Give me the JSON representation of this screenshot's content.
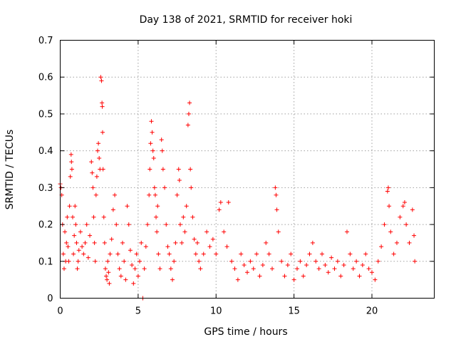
{
  "chart_data": {
    "type": "scatter",
    "title": "Day 138 of 2021, SRMTID for receiver hoki",
    "xlabel": "GPS time / hours",
    "ylabel": "SRMTID / TECUs",
    "xlim": [
      0,
      24
    ],
    "ylim": [
      0,
      0.7
    ],
    "x_ticks": [
      0,
      5,
      10,
      15,
      20
    ],
    "x_tick_labels": [
      "0",
      "5",
      "10",
      "15",
      "20"
    ],
    "y_ticks": [
      0,
      0.1,
      0.2,
      0.3,
      0.4,
      0.5,
      0.6,
      0.7
    ],
    "y_tick_labels": [
      "0",
      "0.1",
      "0.2",
      "0.3",
      "0.4",
      "0.5",
      "0.6",
      "0.7"
    ],
    "grid": true,
    "marker": "plus",
    "color": "#ff0000",
    "series": [
      {
        "name": "SRMTID",
        "points": [
          [
            0.0,
            0.31
          ],
          [
            0.05,
            0.3
          ],
          [
            0.1,
            0.28
          ],
          [
            0.15,
            0.2
          ],
          [
            0.2,
            0.12
          ],
          [
            0.25,
            0.08
          ],
          [
            0.3,
            0.18
          ],
          [
            0.35,
            0.1
          ],
          [
            0.4,
            0.15
          ],
          [
            0.45,
            0.22
          ],
          [
            0.5,
            0.14
          ],
          [
            0.55,
            0.1
          ],
          [
            0.6,
            0.25
          ],
          [
            0.65,
            0.33
          ],
          [
            0.7,
            0.39
          ],
          [
            0.72,
            0.37
          ],
          [
            0.75,
            0.35
          ],
          [
            0.8,
            0.22
          ],
          [
            0.85,
            0.12
          ],
          [
            0.9,
            0.17
          ],
          [
            0.95,
            0.25
          ],
          [
            1.0,
            0.2
          ],
          [
            1.05,
            0.15
          ],
          [
            1.1,
            0.08
          ],
          [
            1.15,
            0.1
          ],
          [
            1.2,
            0.13
          ],
          [
            1.3,
            0.18
          ],
          [
            1.4,
            0.14
          ],
          [
            1.5,
            0.12
          ],
          [
            1.6,
            0.15
          ],
          [
            1.7,
            0.2
          ],
          [
            1.8,
            0.11
          ],
          [
            1.9,
            0.17
          ],
          [
            2.0,
            0.37
          ],
          [
            2.05,
            0.34
          ],
          [
            2.1,
            0.3
          ],
          [
            2.15,
            0.22
          ],
          [
            2.2,
            0.15
          ],
          [
            2.25,
            0.1
          ],
          [
            2.3,
            0.28
          ],
          [
            2.35,
            0.33
          ],
          [
            2.4,
            0.4
          ],
          [
            2.45,
            0.42
          ],
          [
            2.5,
            0.38
          ],
          [
            2.55,
            0.35
          ],
          [
            2.6,
            0.6
          ],
          [
            2.65,
            0.59
          ],
          [
            2.68,
            0.53
          ],
          [
            2.7,
            0.52
          ],
          [
            2.72,
            0.45
          ],
          [
            2.75,
            0.35
          ],
          [
            2.8,
            0.22
          ],
          [
            2.85,
            0.15
          ],
          [
            2.9,
            0.08
          ],
          [
            2.95,
            0.06
          ],
          [
            3.0,
            0.05
          ],
          [
            3.05,
            0.1
          ],
          [
            3.1,
            0.07
          ],
          [
            3.15,
            0.04
          ],
          [
            3.2,
            0.12
          ],
          [
            3.3,
            0.16
          ],
          [
            3.4,
            0.24
          ],
          [
            3.5,
            0.28
          ],
          [
            3.6,
            0.2
          ],
          [
            3.7,
            0.12
          ],
          [
            3.8,
            0.08
          ],
          [
            3.9,
            0.06
          ],
          [
            4.0,
            0.15
          ],
          [
            4.1,
            0.1
          ],
          [
            4.2,
            0.05
          ],
          [
            4.3,
            0.25
          ],
          [
            4.4,
            0.2
          ],
          [
            4.5,
            0.13
          ],
          [
            4.6,
            0.09
          ],
          [
            4.7,
            0.04
          ],
          [
            4.8,
            0.08
          ],
          [
            4.9,
            0.12
          ],
          [
            5.0,
            0.06
          ],
          [
            5.1,
            0.1
          ],
          [
            5.2,
            0.15
          ],
          [
            5.3,
            0.0
          ],
          [
            5.4,
            0.08
          ],
          [
            5.5,
            0.14
          ],
          [
            5.6,
            0.2
          ],
          [
            5.7,
            0.28
          ],
          [
            5.75,
            0.35
          ],
          [
            5.8,
            0.42
          ],
          [
            5.85,
            0.48
          ],
          [
            5.9,
            0.45
          ],
          [
            5.95,
            0.4
          ],
          [
            6.0,
            0.38
          ],
          [
            6.05,
            0.3
          ],
          [
            6.1,
            0.28
          ],
          [
            6.15,
            0.22
          ],
          [
            6.2,
            0.18
          ],
          [
            6.25,
            0.25
          ],
          [
            6.3,
            0.12
          ],
          [
            6.4,
            0.08
          ],
          [
            6.5,
            0.43
          ],
          [
            6.55,
            0.4
          ],
          [
            6.6,
            0.35
          ],
          [
            6.7,
            0.3
          ],
          [
            6.8,
            0.2
          ],
          [
            6.9,
            0.14
          ],
          [
            7.0,
            0.12
          ],
          [
            7.1,
            0.08
          ],
          [
            7.2,
            0.05
          ],
          [
            7.3,
            0.1
          ],
          [
            7.4,
            0.15
          ],
          [
            7.5,
            0.28
          ],
          [
            7.6,
            0.35
          ],
          [
            7.65,
            0.32
          ],
          [
            7.7,
            0.2
          ],
          [
            7.8,
            0.15
          ],
          [
            7.9,
            0.22
          ],
          [
            8.0,
            0.18
          ],
          [
            8.1,
            0.25
          ],
          [
            8.2,
            0.47
          ],
          [
            8.25,
            0.5
          ],
          [
            8.3,
            0.53
          ],
          [
            8.35,
            0.35
          ],
          [
            8.4,
            0.3
          ],
          [
            8.5,
            0.22
          ],
          [
            8.6,
            0.16
          ],
          [
            8.7,
            0.12
          ],
          [
            8.8,
            0.15
          ],
          [
            8.9,
            0.1
          ],
          [
            9.0,
            0.08
          ],
          [
            9.2,
            0.12
          ],
          [
            9.4,
            0.18
          ],
          [
            9.6,
            0.14
          ],
          [
            9.8,
            0.16
          ],
          [
            10.0,
            0.12
          ],
          [
            10.2,
            0.24
          ],
          [
            10.3,
            0.26
          ],
          [
            10.5,
            0.18
          ],
          [
            10.7,
            0.14
          ],
          [
            10.8,
            0.26
          ],
          [
            11.0,
            0.1
          ],
          [
            11.2,
            0.08
          ],
          [
            11.4,
            0.05
          ],
          [
            11.6,
            0.12
          ],
          [
            11.8,
            0.09
          ],
          [
            12.0,
            0.07
          ],
          [
            12.2,
            0.1
          ],
          [
            12.4,
            0.08
          ],
          [
            12.6,
            0.12
          ],
          [
            12.8,
            0.06
          ],
          [
            13.0,
            0.09
          ],
          [
            13.2,
            0.15
          ],
          [
            13.4,
            0.12
          ],
          [
            13.6,
            0.08
          ],
          [
            13.8,
            0.3
          ],
          [
            13.85,
            0.28
          ],
          [
            13.9,
            0.24
          ],
          [
            14.0,
            0.18
          ],
          [
            14.2,
            0.1
          ],
          [
            14.4,
            0.06
          ],
          [
            14.6,
            0.09
          ],
          [
            14.8,
            0.12
          ],
          [
            15.0,
            0.05
          ],
          [
            15.2,
            0.08
          ],
          [
            15.4,
            0.1
          ],
          [
            15.6,
            0.06
          ],
          [
            15.8,
            0.09
          ],
          [
            16.0,
            0.12
          ],
          [
            16.2,
            0.15
          ],
          [
            16.4,
            0.1
          ],
          [
            16.6,
            0.08
          ],
          [
            16.8,
            0.12
          ],
          [
            17.0,
            0.09
          ],
          [
            17.2,
            0.07
          ],
          [
            17.4,
            0.11
          ],
          [
            17.6,
            0.08
          ],
          [
            17.8,
            0.1
          ],
          [
            18.0,
            0.06
          ],
          [
            18.2,
            0.09
          ],
          [
            18.4,
            0.18
          ],
          [
            18.6,
            0.12
          ],
          [
            18.8,
            0.08
          ],
          [
            19.0,
            0.1
          ],
          [
            19.2,
            0.06
          ],
          [
            19.4,
            0.09
          ],
          [
            19.6,
            0.12
          ],
          [
            19.8,
            0.08
          ],
          [
            20.0,
            0.07
          ],
          [
            20.2,
            0.05
          ],
          [
            20.4,
            0.1
          ],
          [
            20.6,
            0.14
          ],
          [
            20.8,
            0.2
          ],
          [
            21.0,
            0.29
          ],
          [
            21.05,
            0.3
          ],
          [
            21.1,
            0.25
          ],
          [
            21.2,
            0.18
          ],
          [
            21.4,
            0.12
          ],
          [
            21.6,
            0.15
          ],
          [
            21.8,
            0.22
          ],
          [
            22.0,
            0.25
          ],
          [
            22.1,
            0.26
          ],
          [
            22.2,
            0.2
          ],
          [
            22.4,
            0.15
          ],
          [
            22.6,
            0.24
          ],
          [
            22.7,
            0.17
          ],
          [
            22.75,
            0.1
          ]
        ]
      }
    ]
  }
}
